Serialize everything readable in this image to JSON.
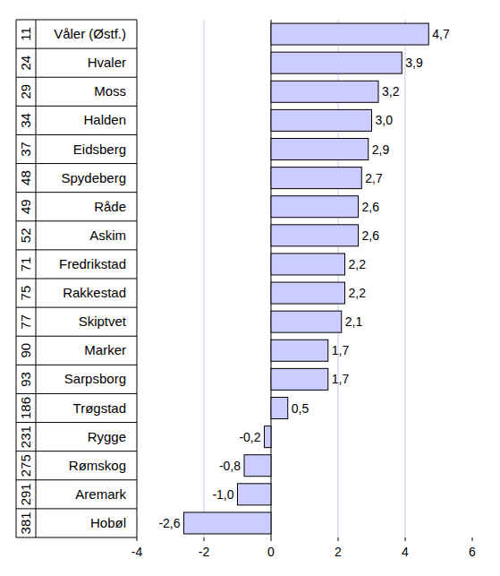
{
  "chart_data": {
    "type": "bar",
    "orientation": "horizontal",
    "categories": [
      "Våler (Østf.)",
      "Hvaler",
      "Moss",
      "Halden",
      "Eidsberg",
      "Spydeberg",
      "Råde",
      "Askim",
      "Fredrikstad",
      "Rakkestad",
      "Skiptvet",
      "Marker",
      "Sarpsborg",
      "Trøgstad",
      "Rygge",
      "Rømskog",
      "Aremark",
      "Hobøl"
    ],
    "ranks": [
      11,
      24,
      29,
      34,
      37,
      48,
      49,
      52,
      71,
      75,
      77,
      90,
      93,
      186,
      231,
      275,
      291,
      381
    ],
    "values": [
      4.7,
      3.9,
      3.2,
      3.0,
      2.9,
      2.7,
      2.6,
      2.6,
      2.2,
      2.2,
      2.1,
      1.7,
      1.7,
      0.5,
      -0.2,
      -0.8,
      -1.0,
      -2.6
    ],
    "value_labels": [
      "4,7",
      "3,9",
      "3,2",
      "3,0",
      "2,9",
      "2,7",
      "2,6",
      "2,6",
      "2,2",
      "2,2",
      "2,1",
      "1,7",
      "1,7",
      "0,5",
      "-0,2",
      "-0,8",
      "-1,0",
      "-2,6"
    ],
    "color": "#ccccff",
    "xlim": [
      -4,
      6
    ],
    "xticks": [
      -4,
      -2,
      0,
      2,
      4,
      6
    ],
    "grid": true,
    "data_labels": true
  }
}
